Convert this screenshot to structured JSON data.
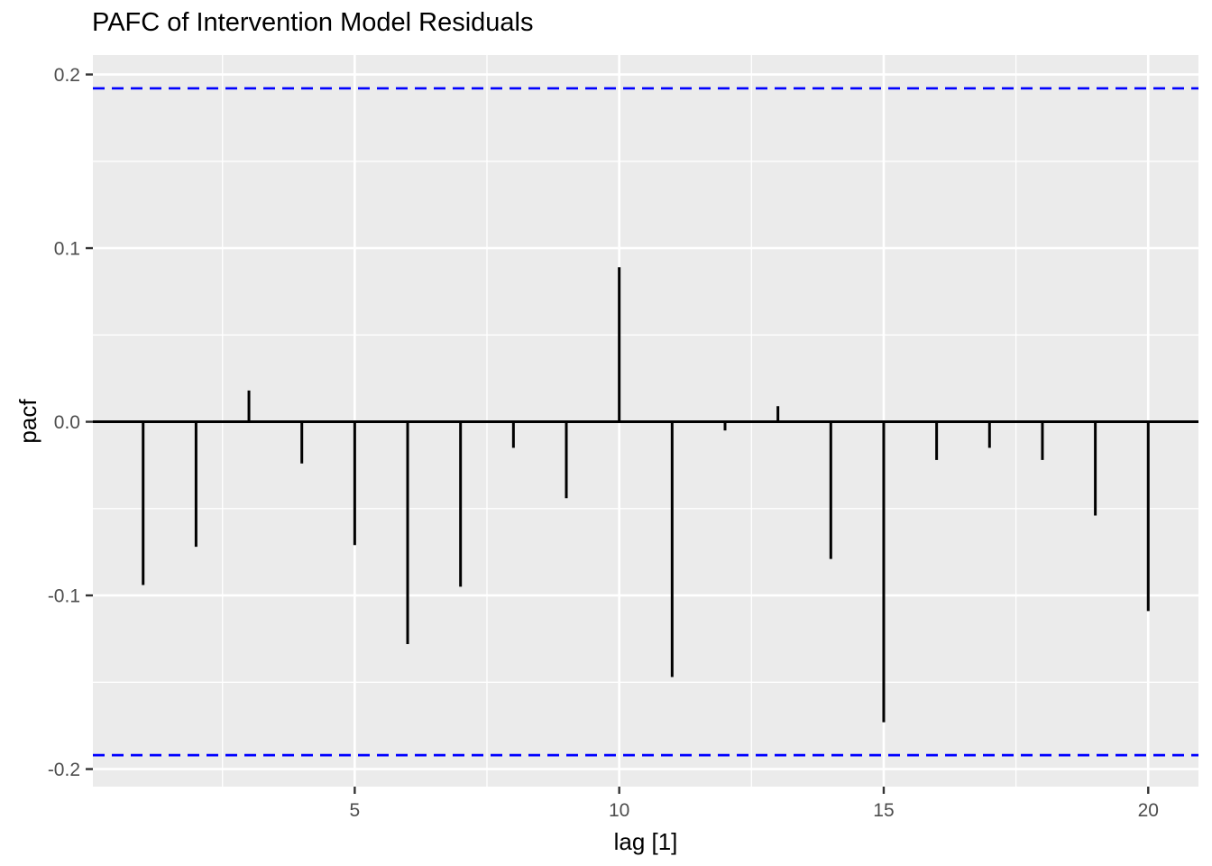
{
  "chart_data": {
    "type": "bar",
    "subtype": "pacf-stem-plot",
    "title": "PAFC of Intervention Model Residuals",
    "xlabel": "lag [1]",
    "ylabel": "pacf",
    "x": [
      1,
      2,
      3,
      4,
      5,
      6,
      7,
      8,
      9,
      10,
      11,
      12,
      13,
      14,
      15,
      16,
      17,
      18,
      19,
      20
    ],
    "values": [
      -0.094,
      -0.072,
      0.018,
      -0.024,
      -0.071,
      -0.128,
      -0.095,
      -0.015,
      -0.044,
      0.089,
      -0.147,
      -0.005,
      0.009,
      -0.079,
      -0.173,
      -0.022,
      -0.015,
      -0.022,
      -0.054,
      -0.109
    ],
    "confidence_bounds": {
      "upper": 0.192,
      "lower": -0.192,
      "style": "dashed"
    },
    "xlim": [
      0.05,
      20.95
    ],
    "ylim": [
      -0.2101,
      0.2112
    ],
    "x_ticks": [
      {
        "v": 5,
        "label": "5"
      },
      {
        "v": 10,
        "label": "10"
      },
      {
        "v": 15,
        "label": "15"
      },
      {
        "v": 20,
        "label": "20"
      }
    ],
    "x_minor_gridlines": [
      2.5,
      7.5,
      12.5,
      17.5
    ],
    "y_ticks": [
      {
        "v": 0.2,
        "label": "0.2"
      },
      {
        "v": 0.1,
        "label": "0.1"
      },
      {
        "v": 0.0,
        "label": "0.0"
      },
      {
        "v": -0.1,
        "label": "-0.1"
      },
      {
        "v": -0.2,
        "label": "-0.2"
      }
    ],
    "y_minor_gridlines": [
      0.15,
      0.05,
      -0.05,
      -0.15
    ],
    "grid": true,
    "legend": "none",
    "colors": {
      "figure_background": "#FFFFFF",
      "panel_background": "#EBEBEB",
      "gridline": "#FFFFFF",
      "bar": "#000000",
      "zero_line": "#000000",
      "confidence_line": "#0000FF",
      "tick_mark": "#333333",
      "tick_label": "#4D4D4D",
      "axis_title": "#000000",
      "title": "#000000"
    }
  }
}
